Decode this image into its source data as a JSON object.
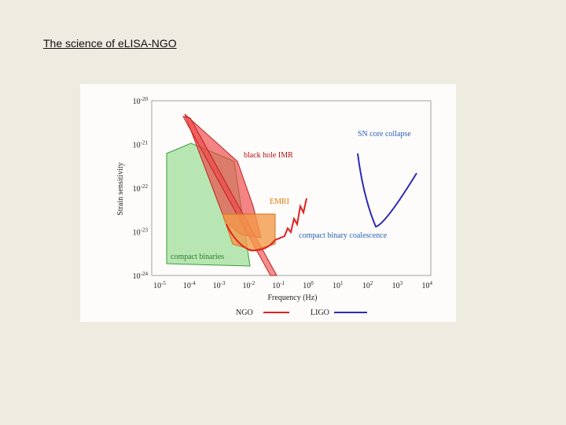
{
  "slide": {
    "title": "The science of eLISA-NGO"
  },
  "figure": {
    "y_label": "Strain sensitivity",
    "x_label": "Frequency (Hz)",
    "y_ticks": [
      {
        "base": "10",
        "exp": "-20"
      },
      {
        "base": "10",
        "exp": "-21"
      },
      {
        "base": "10",
        "exp": "-22"
      },
      {
        "base": "10",
        "exp": "-23"
      },
      {
        "base": "10",
        "exp": "-24"
      }
    ],
    "x_ticks": [
      {
        "base": "10",
        "exp": "-5"
      },
      {
        "base": "10",
        "exp": "-4"
      },
      {
        "base": "10",
        "exp": "-3"
      },
      {
        "base": "10",
        "exp": "-2"
      },
      {
        "base": "10",
        "exp": "-1"
      },
      {
        "base": "10",
        "exp": "0"
      },
      {
        "base": "10",
        "exp": "1"
      },
      {
        "base": "10",
        "exp": "2"
      },
      {
        "base": "10",
        "exp": "3"
      },
      {
        "base": "10",
        "exp": "4"
      }
    ],
    "regions": {
      "black_hole": "black hole IMR",
      "emri": "EMRI",
      "sn": "SN core collapse",
      "cbc": "compact binary coalescence",
      "compact_binaries": "compact binaries"
    },
    "legend": [
      "NGO",
      "LIGO"
    ]
  }
}
